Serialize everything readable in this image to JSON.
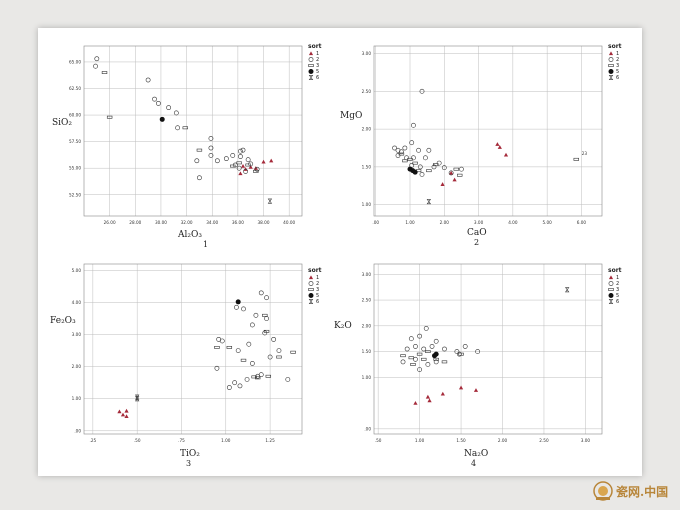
{
  "panels": [
    {
      "id": "p1",
      "xlabel": "Al₂O₃",
      "ylabel": "SiO₂",
      "number": "1"
    },
    {
      "id": "p2",
      "xlabel": "CaO",
      "ylabel": "MgO",
      "number": "2"
    },
    {
      "id": "p3",
      "xlabel": "TiO₂",
      "ylabel": "Fe₂O₃",
      "number": "3"
    },
    {
      "id": "p4",
      "xlabel": "Na₂O",
      "ylabel": "K₂O",
      "number": "4"
    }
  ],
  "legend": {
    "title": "sort",
    "items": [
      {
        "label": "1",
        "marker": "triangle",
        "color": "#a52a3a"
      },
      {
        "label": "2",
        "marker": "circle-open",
        "color": "#333333"
      },
      {
        "label": "3",
        "marker": "rect-open",
        "color": "#333333"
      },
      {
        "label": "5",
        "marker": "circle-filled",
        "color": "#111111"
      },
      {
        "label": "6",
        "marker": "hourglass",
        "color": "#333333"
      }
    ]
  },
  "chart_data": [
    {
      "type": "scatter",
      "xlabel": "Al₂O₃",
      "ylabel": "SiO₂",
      "xlim": [
        24,
        41
      ],
      "ylim": [
        50.5,
        66.5
      ],
      "xticks": [
        "26.00",
        "28.00",
        "30.00",
        "32.00",
        "34.00",
        "36.00",
        "38.00",
        "40.00"
      ],
      "xtickvals": [
        26,
        28,
        30,
        32,
        34,
        36,
        38,
        40
      ],
      "yticks": [
        "52.50",
        "55.00",
        "57.50",
        "60.00",
        "62.50",
        "65.00"
      ],
      "ytickvals": [
        52.5,
        55,
        57.5,
        60,
        62.5,
        65
      ],
      "annotations": [],
      "series": [
        {
          "name": "1",
          "marker": "triangle",
          "color": "#a52a3a",
          "points": [
            [
              36.2,
              54.5
            ],
            [
              36.6,
              54.9
            ],
            [
              37.0,
              55.1
            ],
            [
              37.4,
              55.0
            ],
            [
              38.0,
              55.6
            ],
            [
              38.6,
              55.7
            ],
            [
              36.4,
              55.2
            ]
          ]
        },
        {
          "name": "2",
          "marker": "circle-open",
          "color": "#333333",
          "points": [
            [
              25.0,
              65.3
            ],
            [
              24.9,
              64.6
            ],
            [
              29.0,
              63.3
            ],
            [
              29.5,
              61.5
            ],
            [
              29.8,
              61.1
            ],
            [
              30.6,
              60.7
            ],
            [
              31.2,
              60.2
            ],
            [
              31.3,
              58.8
            ],
            [
              33.9,
              57.8
            ],
            [
              33.9,
              56.2
            ],
            [
              32.8,
              55.7
            ],
            [
              33.0,
              54.1
            ],
            [
              35.1,
              55.9
            ],
            [
              35.8,
              55.3
            ],
            [
              36.2,
              56.1
            ],
            [
              36.4,
              56.7
            ],
            [
              36.8,
              55.8
            ],
            [
              37.0,
              55.4
            ],
            [
              37.5,
              54.9
            ],
            [
              36.1,
              55.0
            ],
            [
              34.4,
              55.7
            ],
            [
              35.6,
              56.2
            ],
            [
              36.6,
              54.7
            ],
            [
              33.9,
              56.9
            ],
            [
              36.2,
              56.6
            ]
          ]
        },
        {
          "name": "3",
          "marker": "rect-open",
          "color": "#333333",
          "points": [
            [
              25.6,
              64.0
            ],
            [
              26.0,
              59.8
            ],
            [
              31.9,
              58.8
            ],
            [
              33.0,
              56.7
            ],
            [
              35.6,
              55.2
            ],
            [
              36.1,
              55.5
            ],
            [
              36.8,
              55.3
            ],
            [
              37.4,
              54.7
            ]
          ]
        },
        {
          "name": "5",
          "marker": "circle-filled",
          "color": "#111111",
          "points": [
            [
              30.1,
              59.6
            ]
          ]
        },
        {
          "name": "6",
          "marker": "hourglass",
          "color": "#333333",
          "points": [
            [
              38.5,
              51.9
            ]
          ]
        }
      ]
    },
    {
      "type": "scatter",
      "xlabel": "CaO",
      "ylabel": "MgO",
      "xlim": [
        -0.05,
        6.6
      ],
      "ylim": [
        0.85,
        3.1
      ],
      "xticks": [
        ".00",
        "1.00",
        "2.00",
        "3.00",
        "4.00",
        "5.00",
        "6.00"
      ],
      "xtickvals": [
        0,
        1,
        2,
        3,
        4,
        5,
        6
      ],
      "yticks": [
        "1.00",
        "1.50",
        "2.00",
        "2.50",
        "3.00"
      ],
      "ytickvals": [
        1.0,
        1.5,
        2.0,
        2.5,
        3.0
      ],
      "annotations": [
        {
          "text": "23",
          "x": 5.95,
          "y": 1.63
        }
      ],
      "series": [
        {
          "name": "1",
          "marker": "triangle",
          "color": "#a52a3a",
          "points": [
            [
              1.95,
              1.27
            ],
            [
              2.3,
              1.33
            ],
            [
              2.2,
              1.42
            ],
            [
              3.55,
              1.8
            ],
            [
              3.62,
              1.76
            ],
            [
              3.8,
              1.66
            ]
          ]
        },
        {
          "name": "2",
          "marker": "circle-open",
          "color": "#333333",
          "points": [
            [
              1.35,
              2.5
            ],
            [
              1.1,
              2.05
            ],
            [
              0.55,
              1.75
            ],
            [
              0.65,
              1.72
            ],
            [
              0.75,
              1.7
            ],
            [
              0.85,
              1.75
            ],
            [
              1.05,
              1.82
            ],
            [
              1.1,
              1.62
            ],
            [
              0.9,
              1.62
            ],
            [
              1.25,
              1.72
            ],
            [
              1.55,
              1.72
            ],
            [
              1.45,
              1.62
            ],
            [
              1.05,
              1.52
            ],
            [
              1.3,
              1.5
            ],
            [
              1.7,
              1.5
            ],
            [
              2.0,
              1.49
            ],
            [
              2.2,
              1.42
            ],
            [
              2.5,
              1.47
            ],
            [
              1.85,
              1.55
            ],
            [
              1.35,
              1.4
            ],
            [
              0.65,
              1.65
            ]
          ]
        },
        {
          "name": "3",
          "marker": "rect-open",
          "color": "#333333",
          "points": [
            [
              0.75,
              1.67
            ],
            [
              0.85,
              1.58
            ],
            [
              1.0,
              1.6
            ],
            [
              1.15,
              1.55
            ],
            [
              1.25,
              1.45
            ],
            [
              1.55,
              1.45
            ],
            [
              1.75,
              1.53
            ],
            [
              2.35,
              1.47
            ],
            [
              2.45,
              1.39
            ],
            [
              5.85,
              1.6
            ]
          ]
        },
        {
          "name": "5",
          "marker": "circle-filled",
          "color": "#111111",
          "points": [
            [
              1.0,
              1.47
            ],
            [
              1.08,
              1.45
            ],
            [
              1.15,
              1.43
            ]
          ]
        },
        {
          "name": "6",
          "marker": "hourglass",
          "color": "#333333",
          "points": [
            [
              1.55,
              1.04
            ]
          ]
        }
      ]
    },
    {
      "type": "scatter",
      "xlabel": "TiO₂",
      "ylabel": "Fe₂O₃",
      "xlim": [
        0.2,
        1.43
      ],
      "ylim": [
        -0.1,
        5.2
      ],
      "xticks": [
        ".25",
        ".50",
        ".75",
        "1.00",
        "1.25"
      ],
      "xtickvals": [
        0.25,
        0.5,
        0.75,
        1.0,
        1.25
      ],
      "yticks": [
        ".00",
        "1.00",
        "2.00",
        "3.00",
        "4.00",
        "5.00"
      ],
      "ytickvals": [
        0,
        1,
        2,
        3,
        4,
        5
      ],
      "annotations": [],
      "series": [
        {
          "name": "1",
          "marker": "triangle",
          "color": "#a52a3a",
          "points": [
            [
              0.4,
              0.6
            ],
            [
              0.42,
              0.5
            ],
            [
              0.44,
              0.45
            ],
            [
              0.44,
              0.62
            ]
          ]
        },
        {
          "name": "2",
          "marker": "circle-open",
          "color": "#333333",
          "points": [
            [
              1.2,
              4.3
            ],
            [
              1.23,
              4.15
            ],
            [
              1.06,
              3.85
            ],
            [
              1.1,
              3.8
            ],
            [
              1.17,
              3.6
            ],
            [
              1.23,
              3.5
            ],
            [
              1.15,
              3.3
            ],
            [
              1.07,
              2.5
            ],
            [
              0.96,
              2.85
            ],
            [
              0.98,
              2.8
            ],
            [
              1.22,
              3.05
            ],
            [
              1.27,
              2.85
            ],
            [
              1.13,
              2.7
            ],
            [
              1.3,
              2.5
            ],
            [
              1.25,
              2.3
            ],
            [
              1.15,
              2.1
            ],
            [
              0.95,
              1.95
            ],
            [
              1.05,
              1.5
            ],
            [
              1.08,
              1.4
            ],
            [
              1.12,
              1.6
            ],
            [
              1.2,
              1.75
            ],
            [
              1.35,
              1.6
            ],
            [
              1.02,
              1.35
            ],
            [
              1.18,
              1.7
            ]
          ]
        },
        {
          "name": "3",
          "marker": "rect-open",
          "color": "#333333",
          "points": [
            [
              0.95,
              2.6
            ],
            [
              1.02,
              2.6
            ],
            [
              1.1,
              2.2
            ],
            [
              1.18,
              1.65
            ],
            [
              1.24,
              1.7
            ],
            [
              1.3,
              2.3
            ],
            [
              1.38,
              2.45
            ],
            [
              1.23,
              3.1
            ],
            [
              1.22,
              3.6
            ],
            [
              1.16,
              1.68
            ]
          ]
        },
        {
          "name": "5",
          "marker": "circle-filled",
          "color": "#111111",
          "points": [
            [
              1.07,
              4.02
            ]
          ]
        },
        {
          "name": "6",
          "marker": "hourglass",
          "color": "#333333",
          "points": [
            [
              0.5,
              1.05
            ],
            [
              0.5,
              1.0
            ]
          ]
        }
      ]
    },
    {
      "type": "scatter",
      "xlabel": "Na₂O",
      "ylabel": "K₂O",
      "xlim": [
        0.45,
        3.2
      ],
      "ylim": [
        -0.1,
        3.2
      ],
      "xticks": [
        ".50",
        "1.00",
        "1.50",
        "2.00",
        "2.50",
        "3.00"
      ],
      "xtickvals": [
        0.5,
        1.0,
        1.5,
        2.0,
        2.5,
        3.0
      ],
      "yticks": [
        ".00",
        "1.00",
        "1.50",
        "2.00",
        "2.50",
        "3.00"
      ],
      "ytickvals": [
        0,
        1.0,
        1.5,
        2.0,
        2.5,
        3.0
      ],
      "annotations": [],
      "series": [
        {
          "name": "1",
          "marker": "triangle",
          "color": "#a52a3a",
          "points": [
            [
              0.95,
              0.5
            ],
            [
              1.1,
              0.62
            ],
            [
              1.12,
              0.55
            ],
            [
              1.28,
              0.68
            ],
            [
              1.5,
              0.8
            ],
            [
              1.68,
              0.75
            ]
          ]
        },
        {
          "name": "2",
          "marker": "circle-open",
          "color": "#333333",
          "points": [
            [
              1.08,
              1.95
            ],
            [
              1.0,
              1.8
            ],
            [
              0.9,
              1.75
            ],
            [
              0.95,
              1.6
            ],
            [
              1.05,
              1.55
            ],
            [
              0.85,
              1.55
            ],
            [
              1.15,
              1.6
            ],
            [
              1.2,
              1.7
            ],
            [
              1.3,
              1.55
            ],
            [
              1.45,
              1.5
            ],
            [
              1.55,
              1.6
            ],
            [
              1.7,
              1.5
            ],
            [
              0.95,
              1.35
            ],
            [
              1.1,
              1.25
            ],
            [
              1.2,
              1.3
            ],
            [
              0.8,
              1.3
            ],
            [
              1.0,
              1.15
            ],
            [
              1.48,
              1.45
            ]
          ]
        },
        {
          "name": "3",
          "marker": "rect-open",
          "color": "#333333",
          "points": [
            [
              0.8,
              1.42
            ],
            [
              0.9,
              1.38
            ],
            [
              1.0,
              1.45
            ],
            [
              1.1,
              1.5
            ],
            [
              1.2,
              1.35
            ],
            [
              1.3,
              1.3
            ],
            [
              0.92,
              1.25
            ],
            [
              1.05,
              1.35
            ],
            [
              1.5,
              1.45
            ]
          ]
        },
        {
          "name": "5",
          "marker": "circle-filled",
          "color": "#111111",
          "points": [
            [
              1.18,
              1.42
            ],
            [
              1.2,
              1.45
            ]
          ]
        },
        {
          "name": "6",
          "marker": "hourglass",
          "color": "#333333",
          "points": [
            [
              2.78,
              2.7
            ]
          ]
        }
      ]
    }
  ],
  "watermark": {
    "text": "瓷网.中国",
    "color": "#b8863a"
  }
}
